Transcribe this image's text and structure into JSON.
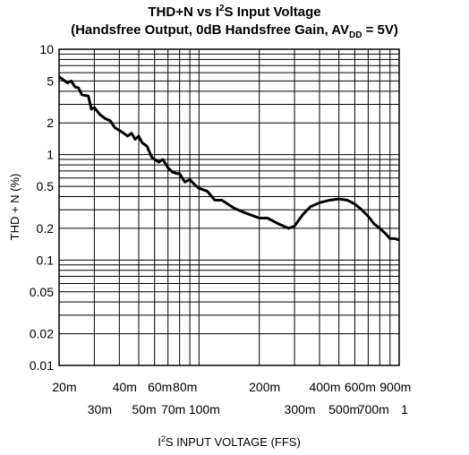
{
  "chart_data": {
    "type": "line",
    "title": [
      "THD+N vs I",
      "2",
      "S Input Voltage"
    ],
    "subtitle": [
      "(Handsfree Output, 0dB Handsfree Gain, AV",
      "DD",
      " = 5V)"
    ],
    "x_label": [
      "I",
      "2",
      "S INPUT VOLTAGE (FFS)"
    ],
    "y_label": "THD + N (%)",
    "xscale": "log",
    "yscale": "log",
    "grid": true,
    "xlim": [
      0.02,
      1
    ],
    "ylim": [
      0.01,
      10
    ],
    "xticks": [
      {
        "value": 0.02,
        "label": "20m"
      },
      {
        "value": 0.03,
        "label": "30m"
      },
      {
        "value": 0.04,
        "label": "40m"
      },
      {
        "value": 0.05,
        "label": "50m"
      },
      {
        "value": 0.06,
        "label": "60m"
      },
      {
        "value": 0.07,
        "label": "70m"
      },
      {
        "value": 0.08,
        "label": "80m"
      },
      {
        "value": 0.1,
        "label": "100m"
      },
      {
        "value": 0.2,
        "label": "200m"
      },
      {
        "value": 0.3,
        "label": "300m"
      },
      {
        "value": 0.4,
        "label": "400m"
      },
      {
        "value": 0.5,
        "label": "500m"
      },
      {
        "value": 0.6,
        "label": "600m"
      },
      {
        "value": 0.7,
        "label": "700m"
      },
      {
        "value": 0.9,
        "label": "900m"
      },
      1
    ],
    "xgrid_minor": [
      0.09,
      0.8
    ],
    "yticks": [
      0.01,
      0.02,
      0.05,
      0.1,
      0.2,
      0.5,
      1,
      2,
      5,
      10
    ],
    "ygrid_minor": [
      0.03,
      0.04,
      0.06,
      0.07,
      0.08,
      0.09,
      0.3,
      0.4,
      0.6,
      0.7,
      0.8,
      0.9,
      3,
      4,
      6,
      7,
      8,
      9
    ],
    "x": [
      0.02,
      0.022,
      0.023,
      0.024,
      0.025,
      0.026,
      0.028,
      0.029,
      0.03,
      0.032,
      0.034,
      0.036,
      0.038,
      0.04,
      0.042,
      0.044,
      0.046,
      0.048,
      0.05,
      0.052,
      0.055,
      0.058,
      0.06,
      0.063,
      0.066,
      0.07,
      0.074,
      0.078,
      0.08,
      0.085,
      0.09,
      0.095,
      0.1,
      0.11,
      0.12,
      0.13,
      0.15,
      0.17,
      0.2,
      0.22,
      0.25,
      0.28,
      0.3,
      0.33,
      0.36,
      0.4,
      0.45,
      0.5,
      0.55,
      0.6,
      0.65,
      0.7,
      0.75,
      0.8,
      0.85,
      0.9,
      0.95,
      1
    ],
    "series": [
      {
        "name": "THD+N",
        "color": "#000000",
        "values": [
          5.5,
          4.8,
          5.0,
          4.4,
          4.3,
          3.7,
          3.6,
          2.7,
          2.8,
          2.4,
          2.2,
          2.1,
          1.8,
          1.7,
          1.6,
          1.5,
          1.6,
          1.4,
          1.5,
          1.3,
          1.2,
          0.95,
          0.9,
          0.85,
          0.9,
          0.75,
          0.68,
          0.66,
          0.66,
          0.55,
          0.58,
          0.52,
          0.48,
          0.45,
          0.37,
          0.37,
          0.31,
          0.28,
          0.25,
          0.25,
          0.22,
          0.2,
          0.21,
          0.27,
          0.32,
          0.35,
          0.37,
          0.38,
          0.37,
          0.34,
          0.3,
          0.26,
          0.22,
          0.2,
          0.18,
          0.16,
          0.16,
          0.155
        ]
      }
    ]
  }
}
